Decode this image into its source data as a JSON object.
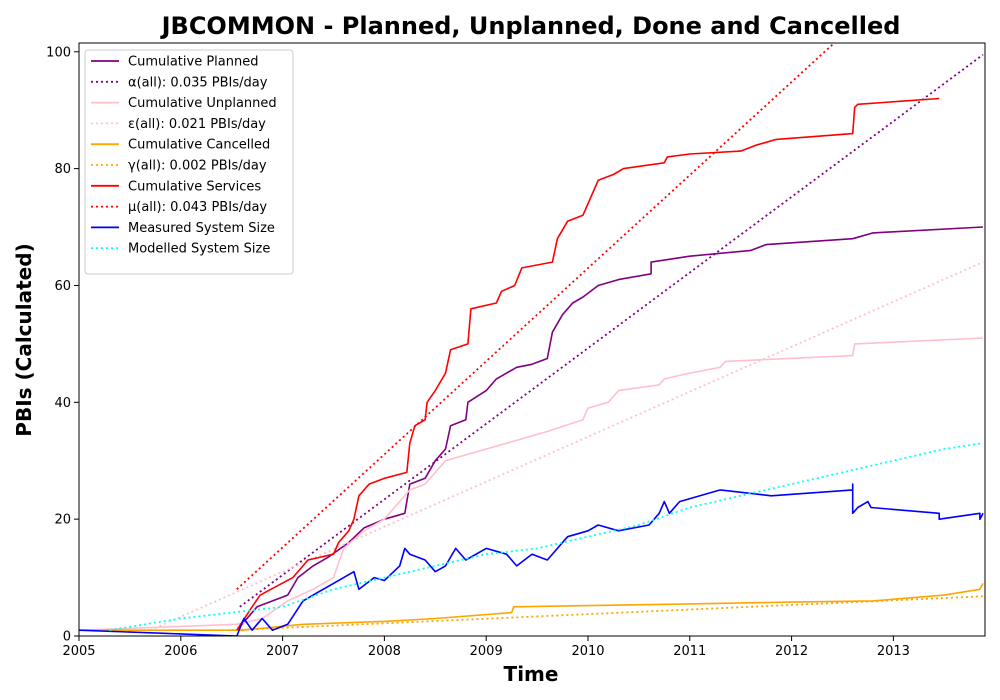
{
  "chart_data": {
    "type": "line",
    "title": "JBCOMMON - Planned, Unplanned, Done  and Cancelled",
    "xlabel": "Time",
    "ylabel": "PBIs (Calculated)",
    "xlim": [
      2005.0,
      2013.9
    ],
    "ylim": [
      0,
      101.5
    ],
    "xticks": [
      "2005",
      "2006",
      "2007",
      "2008",
      "2009",
      "2010",
      "2011",
      "2012",
      "2013"
    ],
    "yticks": [
      "0",
      "20",
      "40",
      "60",
      "80",
      "100"
    ],
    "legend_position": "top-left",
    "series": [
      {
        "name": "Cumulative Planned",
        "color": "#800080",
        "style": "solid",
        "points": [
          [
            2006.55,
            1
          ],
          [
            2006.75,
            5
          ],
          [
            2007.05,
            7
          ],
          [
            2007.15,
            10
          ],
          [
            2007.3,
            12
          ],
          [
            2007.45,
            13.5
          ],
          [
            2007.65,
            16
          ],
          [
            2007.8,
            18.5
          ],
          [
            2008.0,
            20
          ],
          [
            2008.2,
            21
          ],
          [
            2008.25,
            26
          ],
          [
            2008.4,
            27
          ],
          [
            2008.5,
            30
          ],
          [
            2008.6,
            32
          ],
          [
            2008.65,
            36
          ],
          [
            2008.8,
            37
          ],
          [
            2008.82,
            40
          ],
          [
            2009.0,
            42
          ],
          [
            2009.1,
            44
          ],
          [
            2009.3,
            46
          ],
          [
            2009.45,
            46.5
          ],
          [
            2009.6,
            47.5
          ],
          [
            2009.65,
            52
          ],
          [
            2009.75,
            55
          ],
          [
            2009.85,
            57
          ],
          [
            2009.95,
            58
          ],
          [
            2010.1,
            60
          ],
          [
            2010.3,
            61
          ],
          [
            2010.62,
            62
          ],
          [
            2010.62,
            64
          ],
          [
            2011.0,
            65
          ],
          [
            2011.6,
            66
          ],
          [
            2011.75,
            67
          ],
          [
            2012.6,
            68
          ],
          [
            2012.8,
            69
          ],
          [
            2013.88,
            70
          ]
        ]
      },
      {
        "name": "α(all): 0.035 PBIs/day",
        "color": "#800080",
        "style": "dotted",
        "points": [
          [
            2006.58,
            5
          ],
          [
            2013.88,
            99.5
          ]
        ]
      },
      {
        "name": "Cumulative Unplanned",
        "color": "#ffc0cb",
        "style": "solid",
        "points": [
          [
            2005.0,
            1
          ],
          [
            2006.55,
            2
          ],
          [
            2006.8,
            3
          ],
          [
            2007.05,
            6
          ],
          [
            2007.3,
            8
          ],
          [
            2007.5,
            10
          ],
          [
            2007.6,
            15
          ],
          [
            2007.8,
            18
          ],
          [
            2008.0,
            20
          ],
          [
            2008.25,
            25
          ],
          [
            2008.4,
            26
          ],
          [
            2008.6,
            30
          ],
          [
            2008.8,
            31
          ],
          [
            2009.2,
            33
          ],
          [
            2009.6,
            35
          ],
          [
            2009.95,
            37
          ],
          [
            2010.0,
            39
          ],
          [
            2010.2,
            40
          ],
          [
            2010.3,
            42
          ],
          [
            2010.7,
            43
          ],
          [
            2010.75,
            44
          ],
          [
            2011.0,
            45
          ],
          [
            2011.3,
            46
          ],
          [
            2011.35,
            47
          ],
          [
            2012.6,
            48
          ],
          [
            2012.62,
            50
          ],
          [
            2013.88,
            51
          ]
        ]
      },
      {
        "name": "ε(all): 0.021 PBIs/day",
        "color": "#ffc0cb",
        "style": "dotted",
        "points": [
          [
            2005.7,
            1
          ],
          [
            2013.88,
            64
          ]
        ]
      },
      {
        "name": "Cumulative Cancelled",
        "color": "#ffa500",
        "style": "solid",
        "points": [
          [
            2005.0,
            1
          ],
          [
            2006.6,
            1
          ],
          [
            2007.2,
            2
          ],
          [
            2008.0,
            2.5
          ],
          [
            2008.5,
            3
          ],
          [
            2009.25,
            4
          ],
          [
            2009.27,
            5
          ],
          [
            2010.0,
            5.2
          ],
          [
            2011.0,
            5.5
          ],
          [
            2012.0,
            5.8
          ],
          [
            2012.8,
            6
          ],
          [
            2013.5,
            7
          ],
          [
            2013.85,
            8
          ],
          [
            2013.88,
            9
          ]
        ]
      },
      {
        "name": "γ(all): 0.002 PBIs/day",
        "color": "#ffa500",
        "style": "dotted",
        "points": [
          [
            2006.5,
            1
          ],
          [
            2013.88,
            6.8
          ]
        ]
      },
      {
        "name": "Cumulative Services",
        "color": "#ff0000",
        "style": "solid",
        "points": [
          [
            2006.55,
            1
          ],
          [
            2006.7,
            5
          ],
          [
            2006.78,
            7
          ],
          [
            2007.1,
            10
          ],
          [
            2007.25,
            13
          ],
          [
            2007.5,
            14
          ],
          [
            2007.55,
            16
          ],
          [
            2007.65,
            18
          ],
          [
            2007.7,
            20
          ],
          [
            2007.75,
            24
          ],
          [
            2007.85,
            26
          ],
          [
            2008.0,
            27
          ],
          [
            2008.22,
            28
          ],
          [
            2008.25,
            33
          ],
          [
            2008.3,
            36
          ],
          [
            2008.4,
            37
          ],
          [
            2008.42,
            40
          ],
          [
            2008.5,
            42
          ],
          [
            2008.6,
            45
          ],
          [
            2008.65,
            49
          ],
          [
            2008.82,
            50
          ],
          [
            2008.85,
            56
          ],
          [
            2009.1,
            57
          ],
          [
            2009.15,
            59
          ],
          [
            2009.28,
            60
          ],
          [
            2009.35,
            63
          ],
          [
            2009.65,
            64
          ],
          [
            2009.7,
            68
          ],
          [
            2009.8,
            71
          ],
          [
            2009.95,
            72
          ],
          [
            2010.0,
            74
          ],
          [
            2010.1,
            78
          ],
          [
            2010.25,
            79
          ],
          [
            2010.35,
            80
          ],
          [
            2010.75,
            81
          ],
          [
            2010.78,
            82
          ],
          [
            2011.0,
            82.5
          ],
          [
            2011.5,
            83
          ],
          [
            2011.65,
            84
          ],
          [
            2011.85,
            85
          ],
          [
            2012.6,
            86
          ],
          [
            2012.62,
            90.5
          ],
          [
            2012.65,
            91
          ],
          [
            2013.45,
            92
          ]
        ]
      },
      {
        "name": "μ(all): 0.043 PBIs/day",
        "color": "#ff0000",
        "style": "dotted",
        "points": [
          [
            2006.55,
            8
          ],
          [
            2012.45,
            102
          ]
        ]
      },
      {
        "name": "Measured System Size",
        "color": "#0000ff",
        "style": "solid",
        "points": [
          [
            2005.0,
            1
          ],
          [
            2006.55,
            0
          ],
          [
            2006.62,
            3
          ],
          [
            2006.7,
            1
          ],
          [
            2006.75,
            2
          ],
          [
            2006.8,
            3
          ],
          [
            2006.9,
            1
          ],
          [
            2007.05,
            2
          ],
          [
            2007.2,
            6
          ],
          [
            2007.3,
            7
          ],
          [
            2007.5,
            9
          ],
          [
            2007.7,
            11
          ],
          [
            2007.75,
            8
          ],
          [
            2007.9,
            10
          ],
          [
            2008.0,
            9.5
          ],
          [
            2008.15,
            12
          ],
          [
            2008.2,
            15
          ],
          [
            2008.25,
            14
          ],
          [
            2008.4,
            13
          ],
          [
            2008.5,
            11
          ],
          [
            2008.6,
            12
          ],
          [
            2008.7,
            15
          ],
          [
            2008.8,
            13
          ],
          [
            2009.0,
            15
          ],
          [
            2009.2,
            14
          ],
          [
            2009.3,
            12
          ],
          [
            2009.45,
            14
          ],
          [
            2009.6,
            13
          ],
          [
            2009.8,
            17
          ],
          [
            2010.0,
            18
          ],
          [
            2010.1,
            19
          ],
          [
            2010.3,
            18
          ],
          [
            2010.6,
            19
          ],
          [
            2010.7,
            21
          ],
          [
            2010.75,
            23
          ],
          [
            2010.8,
            21
          ],
          [
            2010.9,
            23
          ],
          [
            2011.3,
            25
          ],
          [
            2011.8,
            24
          ],
          [
            2012.6,
            25
          ],
          [
            2012.6,
            26
          ],
          [
            2012.6,
            21
          ],
          [
            2012.65,
            22
          ],
          [
            2012.75,
            23
          ],
          [
            2012.78,
            22
          ],
          [
            2013.45,
            21
          ],
          [
            2013.45,
            20
          ],
          [
            2013.85,
            21
          ],
          [
            2013.85,
            20
          ],
          [
            2013.88,
            21
          ]
        ]
      },
      {
        "name": "Modelled System Size",
        "color": "#00ffff",
        "style": "dotted",
        "points": [
          [
            2005.3,
            1
          ],
          [
            2006.0,
            3
          ],
          [
            2006.5,
            4
          ],
          [
            2007.0,
            5
          ],
          [
            2007.5,
            8
          ],
          [
            2008.0,
            10
          ],
          [
            2008.5,
            12
          ],
          [
            2009.0,
            14
          ],
          [
            2009.5,
            15
          ],
          [
            2010.0,
            17
          ],
          [
            2010.5,
            19
          ],
          [
            2011.0,
            22
          ],
          [
            2011.5,
            24
          ],
          [
            2012.0,
            26
          ],
          [
            2012.5,
            28
          ],
          [
            2013.0,
            30
          ],
          [
            2013.5,
            32
          ],
          [
            2013.88,
            33
          ]
        ]
      }
    ]
  }
}
